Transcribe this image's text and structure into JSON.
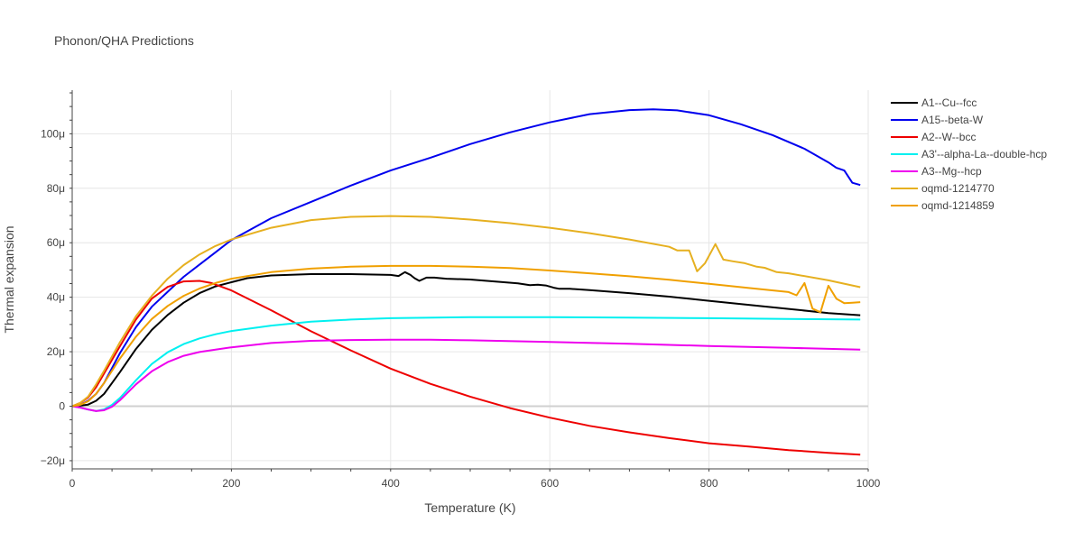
{
  "chart_data": {
    "type": "line",
    "title": "Phonon/QHA Predictions",
    "xlabel": "Temperature (K)",
    "ylabel": "Thermal expansion",
    "xlim": [
      0,
      1000
    ],
    "ylim": [
      -2.3e-05,
      0.000116
    ],
    "x_ticks": [
      0,
      200,
      400,
      600,
      800,
      1000
    ],
    "x_tick_labels": [
      "0",
      "200",
      "400",
      "600",
      "800",
      "1000"
    ],
    "y_ticks": [
      -2e-05,
      0,
      2e-05,
      4e-05,
      6e-05,
      8e-05,
      0.0001
    ],
    "y_tick_labels": [
      "−20μ",
      "0",
      "20μ",
      "40μ",
      "60μ",
      "80μ",
      "100μ"
    ],
    "grid": true,
    "legend_position": "top-right",
    "series": [
      {
        "name": "A1--Cu--fcc",
        "color": "#000000",
        "points": [
          [
            0,
            0
          ],
          [
            10,
            2e-07
          ],
          [
            20,
            6e-07
          ],
          [
            30,
            2e-06
          ],
          [
            40,
            4.5e-06
          ],
          [
            50,
            8.5e-06
          ],
          [
            60,
            1.25e-05
          ],
          [
            80,
            2.1e-05
          ],
          [
            100,
            2.8e-05
          ],
          [
            120,
            3.35e-05
          ],
          [
            140,
            3.8e-05
          ],
          [
            160,
            4.15e-05
          ],
          [
            180,
            4.4e-05
          ],
          [
            200,
            4.55e-05
          ],
          [
            220,
            4.7e-05
          ],
          [
            250,
            4.8e-05
          ],
          [
            300,
            4.85e-05
          ],
          [
            350,
            4.85e-05
          ],
          [
            400,
            4.82e-05
          ],
          [
            410,
            4.78e-05
          ],
          [
            418,
            4.92e-05
          ],
          [
            425,
            4.82e-05
          ],
          [
            430,
            4.7e-05
          ],
          [
            436,
            4.6e-05
          ],
          [
            445,
            4.72e-05
          ],
          [
            455,
            4.72e-05
          ],
          [
            470,
            4.68e-05
          ],
          [
            500,
            4.65e-05
          ],
          [
            530,
            4.58e-05
          ],
          [
            560,
            4.51e-05
          ],
          [
            575,
            4.44e-05
          ],
          [
            585,
            4.46e-05
          ],
          [
            595,
            4.43e-05
          ],
          [
            605,
            4.35e-05
          ],
          [
            612,
            4.31e-05
          ],
          [
            625,
            4.31e-05
          ],
          [
            650,
            4.26e-05
          ],
          [
            700,
            4.15e-05
          ],
          [
            750,
            4.02e-05
          ],
          [
            800,
            3.87e-05
          ],
          [
            850,
            3.72e-05
          ],
          [
            900,
            3.57e-05
          ],
          [
            950,
            3.42e-05
          ],
          [
            990,
            3.34e-05
          ]
        ]
      },
      {
        "name": "A15--beta-W",
        "color": "#0000ee",
        "points": [
          [
            0,
            0
          ],
          [
            10,
            5e-07
          ],
          [
            20,
            2e-06
          ],
          [
            30,
            4.5e-06
          ],
          [
            40,
            8.5e-06
          ],
          [
            60,
            1.95e-05
          ],
          [
            80,
            2.9e-05
          ],
          [
            100,
            3.65e-05
          ],
          [
            120,
            4.2e-05
          ],
          [
            140,
            4.75e-05
          ],
          [
            160,
            5.2e-05
          ],
          [
            180,
            5.65e-05
          ],
          [
            200,
            6.1e-05
          ],
          [
            250,
            6.9e-05
          ],
          [
            300,
            7.5e-05
          ],
          [
            350,
            8.1e-05
          ],
          [
            400,
            8.65e-05
          ],
          [
            450,
            9.12e-05
          ],
          [
            500,
            9.62e-05
          ],
          [
            550,
            0.0001005
          ],
          [
            600,
            0.0001042
          ],
          [
            650,
            0.0001072
          ],
          [
            700,
            0.0001087
          ],
          [
            730,
            0.000109
          ],
          [
            760,
            0.0001086
          ],
          [
            800,
            0.0001068
          ],
          [
            840,
            0.0001035
          ],
          [
            880,
            9.95e-05
          ],
          [
            920,
            9.45e-05
          ],
          [
            950,
            8.95e-05
          ],
          [
            960,
            8.75e-05
          ],
          [
            970,
            8.65e-05
          ],
          [
            980,
            8.2e-05
          ],
          [
            990,
            8.12e-05
          ]
        ]
      },
      {
        "name": "A2--W--bcc",
        "color": "#ee0000",
        "points": [
          [
            0,
            0
          ],
          [
            10,
            1.2e-06
          ],
          [
            20,
            3.2e-06
          ],
          [
            30,
            7e-06
          ],
          [
            40,
            1.2e-05
          ],
          [
            60,
            2.2e-05
          ],
          [
            80,
            3.18e-05
          ],
          [
            100,
            3.95e-05
          ],
          [
            120,
            4.38e-05
          ],
          [
            140,
            4.58e-05
          ],
          [
            160,
            4.6e-05
          ],
          [
            175,
            4.52e-05
          ],
          [
            200,
            4.25e-05
          ],
          [
            250,
            3.52e-05
          ],
          [
            300,
            2.75e-05
          ],
          [
            350,
            2.05e-05
          ],
          [
            400,
            1.38e-05
          ],
          [
            450,
            8.2e-06
          ],
          [
            500,
            3.5e-06
          ],
          [
            550,
            -7e-07
          ],
          [
            600,
            -4.2e-06
          ],
          [
            650,
            -7.2e-06
          ],
          [
            700,
            -9.6e-06
          ],
          [
            750,
            -1.17e-05
          ],
          [
            800,
            -1.36e-05
          ],
          [
            850,
            -1.48e-05
          ],
          [
            900,
            -1.61e-05
          ],
          [
            950,
            -1.71e-05
          ],
          [
            990,
            -1.78e-05
          ]
        ]
      },
      {
        "name": "A3'--alpha-La--double-hcp",
        "color": "#00f0f0",
        "points": [
          [
            0,
            0
          ],
          [
            10,
            -5e-07
          ],
          [
            20,
            -1.2e-06
          ],
          [
            30,
            -1.8e-06
          ],
          [
            40,
            -1.2e-06
          ],
          [
            50,
            5e-07
          ],
          [
            60,
            3e-06
          ],
          [
            80,
            9.5e-06
          ],
          [
            100,
            1.55e-05
          ],
          [
            120,
            1.98e-05
          ],
          [
            140,
            2.28e-05
          ],
          [
            160,
            2.49e-05
          ],
          [
            180,
            2.64e-05
          ],
          [
            200,
            2.76e-05
          ],
          [
            250,
            2.96e-05
          ],
          [
            300,
            3.1e-05
          ],
          [
            350,
            3.18e-05
          ],
          [
            400,
            3.23e-05
          ],
          [
            500,
            3.27e-05
          ],
          [
            600,
            3.27e-05
          ],
          [
            700,
            3.25e-05
          ],
          [
            800,
            3.23e-05
          ],
          [
            900,
            3.2e-05
          ],
          [
            990,
            3.18e-05
          ]
        ]
      },
      {
        "name": "A3--Mg--hcp",
        "color": "#ee00ee",
        "points": [
          [
            0,
            0
          ],
          [
            10,
            -5e-07
          ],
          [
            20,
            -1.2e-06
          ],
          [
            30,
            -1.8e-06
          ],
          [
            40,
            -1.5e-06
          ],
          [
            50,
            -2e-07
          ],
          [
            60,
            2.2e-06
          ],
          [
            80,
            8e-06
          ],
          [
            100,
            1.28e-05
          ],
          [
            120,
            1.62e-05
          ],
          [
            140,
            1.85e-05
          ],
          [
            160,
            1.99e-05
          ],
          [
            180,
            2.08e-05
          ],
          [
            200,
            2.16e-05
          ],
          [
            250,
            2.32e-05
          ],
          [
            300,
            2.4e-05
          ],
          [
            350,
            2.43e-05
          ],
          [
            400,
            2.44e-05
          ],
          [
            450,
            2.44e-05
          ],
          [
            500,
            2.42e-05
          ],
          [
            600,
            2.36e-05
          ],
          [
            700,
            2.29e-05
          ],
          [
            800,
            2.21e-05
          ],
          [
            900,
            2.14e-05
          ],
          [
            990,
            2.08e-05
          ]
        ]
      },
      {
        "name": "oqmd-1214770",
        "color": "#e6b020",
        "points": [
          [
            0,
            0
          ],
          [
            10,
            1.2e-06
          ],
          [
            20,
            3.5e-06
          ],
          [
            30,
            8e-06
          ],
          [
            40,
            1.3e-05
          ],
          [
            60,
            2.35e-05
          ],
          [
            80,
            3.3e-05
          ],
          [
            100,
            4.05e-05
          ],
          [
            120,
            4.68e-05
          ],
          [
            140,
            5.18e-05
          ],
          [
            160,
            5.57e-05
          ],
          [
            180,
            5.88e-05
          ],
          [
            200,
            6.12e-05
          ],
          [
            250,
            6.55e-05
          ],
          [
            300,
            6.83e-05
          ],
          [
            350,
            6.95e-05
          ],
          [
            400,
            6.98e-05
          ],
          [
            450,
            6.95e-05
          ],
          [
            500,
            6.85e-05
          ],
          [
            550,
            6.72e-05
          ],
          [
            600,
            6.55e-05
          ],
          [
            650,
            6.35e-05
          ],
          [
            700,
            6.12e-05
          ],
          [
            750,
            5.85e-05
          ],
          [
            760,
            5.72e-05
          ],
          [
            775,
            5.72e-05
          ],
          [
            785,
            4.95e-05
          ],
          [
            795,
            5.25e-05
          ],
          [
            808,
            5.95e-05
          ],
          [
            818,
            5.38e-05
          ],
          [
            830,
            5.32e-05
          ],
          [
            845,
            5.25e-05
          ],
          [
            860,
            5.12e-05
          ],
          [
            870,
            5.08e-05
          ],
          [
            885,
            4.92e-05
          ],
          [
            900,
            4.88e-05
          ],
          [
            950,
            4.62e-05
          ],
          [
            990,
            4.37e-05
          ]
        ]
      },
      {
        "name": "oqmd-1214859",
        "color": "#f0a000",
        "points": [
          [
            0,
            0
          ],
          [
            10,
            5e-07
          ],
          [
            20,
            1.8e-06
          ],
          [
            30,
            4.5e-06
          ],
          [
            40,
            8.5e-06
          ],
          [
            60,
            1.75e-05
          ],
          [
            80,
            2.55e-05
          ],
          [
            100,
            3.2e-05
          ],
          [
            120,
            3.68e-05
          ],
          [
            140,
            4.05e-05
          ],
          [
            160,
            4.32e-05
          ],
          [
            180,
            4.52e-05
          ],
          [
            200,
            4.68e-05
          ],
          [
            250,
            4.92e-05
          ],
          [
            300,
            5.05e-05
          ],
          [
            350,
            5.12e-05
          ],
          [
            400,
            5.15e-05
          ],
          [
            450,
            5.15e-05
          ],
          [
            500,
            5.12e-05
          ],
          [
            550,
            5.07e-05
          ],
          [
            600,
            4.98e-05
          ],
          [
            650,
            4.88e-05
          ],
          [
            700,
            4.77e-05
          ],
          [
            750,
            4.64e-05
          ],
          [
            800,
            4.49e-05
          ],
          [
            850,
            4.34e-05
          ],
          [
            900,
            4.19e-05
          ],
          [
            910,
            4.07e-05
          ],
          [
            920,
            4.52e-05
          ],
          [
            930,
            3.58e-05
          ],
          [
            940,
            3.45e-05
          ],
          [
            950,
            4.42e-05
          ],
          [
            960,
            3.95e-05
          ],
          [
            970,
            3.78e-05
          ],
          [
            980,
            3.8e-05
          ],
          [
            990,
            3.82e-05
          ]
        ]
      }
    ]
  }
}
